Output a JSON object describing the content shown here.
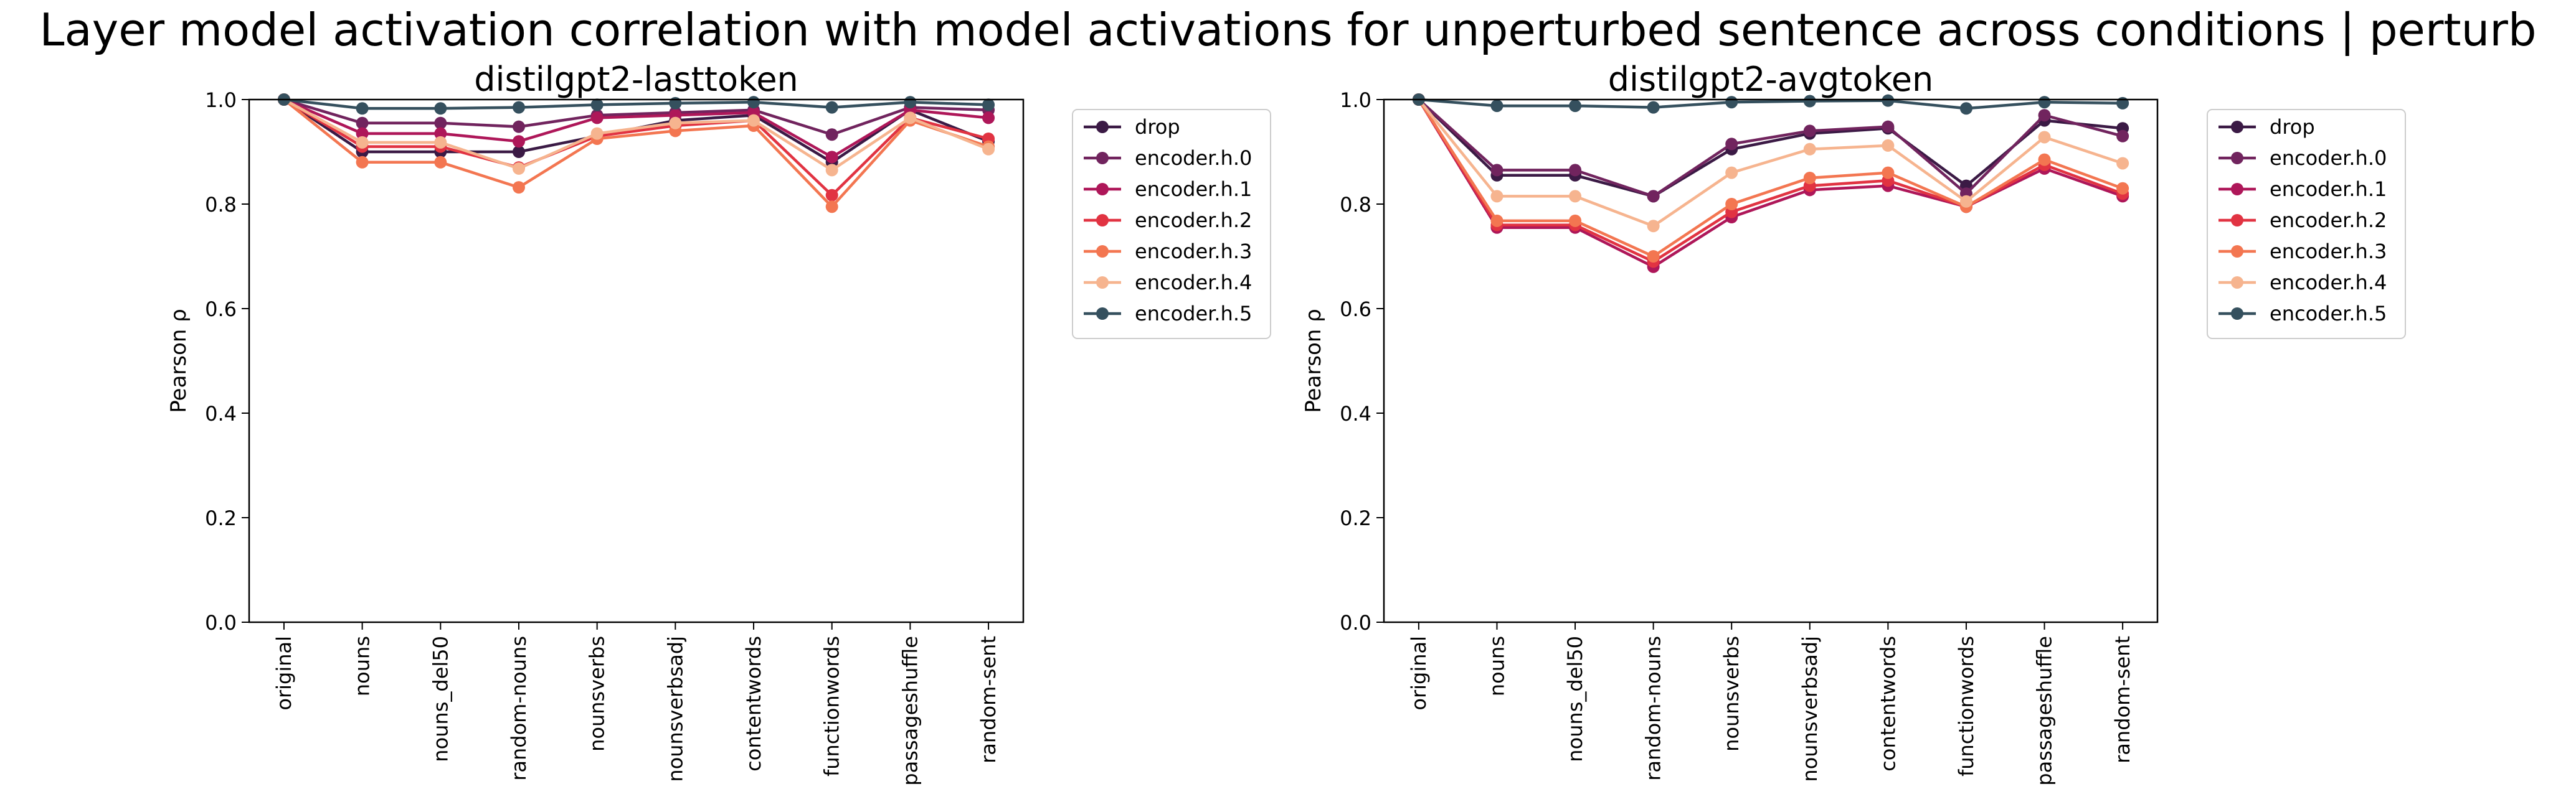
{
  "suptitle": "Layer model activation correlation with model activations for unperturbed sentence across conditions | perturb",
  "chart_data": [
    {
      "type": "line",
      "title": "distilgpt2-lasttoken",
      "xlabel": "",
      "ylabel": "Pearson ρ",
      "ylim": [
        0,
        1
      ],
      "yticks": [
        "0.0",
        "0.2",
        "0.4",
        "0.6",
        "0.8",
        "1.0"
      ],
      "legend": "outside-right",
      "grid": false,
      "categories": [
        "original",
        "nouns",
        "nouns_del50",
        "random-nouns",
        "nounsverbs",
        "nounsverbsadj",
        "contentwords",
        "functionwords",
        "passageshuffle",
        "random-sent"
      ],
      "series": [
        {
          "name": "drop",
          "color": "#3b1a45",
          "values": [
            1.0,
            0.9,
            0.9,
            0.9,
            0.93,
            0.96,
            0.97,
            0.88,
            0.98,
            0.92
          ]
        },
        {
          "name": "encoder.h.0",
          "color": "#71245e",
          "values": [
            1.0,
            0.955,
            0.955,
            0.948,
            0.97,
            0.975,
            0.98,
            0.933,
            0.985,
            0.98
          ]
        },
        {
          "name": "encoder.h.1",
          "color": "#ae1759",
          "values": [
            1.0,
            0.935,
            0.935,
            0.92,
            0.965,
            0.97,
            0.975,
            0.89,
            0.98,
            0.965
          ]
        },
        {
          "name": "encoder.h.2",
          "color": "#e13342",
          "values": [
            1.0,
            0.91,
            0.91,
            0.87,
            0.93,
            0.95,
            0.96,
            0.817,
            0.965,
            0.925
          ]
        },
        {
          "name": "encoder.h.3",
          "color": "#f37651",
          "values": [
            1.0,
            0.88,
            0.88,
            0.832,
            0.925,
            0.94,
            0.95,
            0.795,
            0.96,
            0.91
          ]
        },
        {
          "name": "encoder.h.4",
          "color": "#f6b48f",
          "values": [
            1.0,
            0.918,
            0.918,
            0.868,
            0.935,
            0.955,
            0.96,
            0.865,
            0.965,
            0.905
          ]
        },
        {
          "name": "encoder.h.5",
          "color": "#35505e",
          "values": [
            1.0,
            0.983,
            0.983,
            0.985,
            0.99,
            0.993,
            0.995,
            0.985,
            0.995,
            0.99
          ]
        }
      ]
    },
    {
      "type": "line",
      "title": "distilgpt2-avgtoken",
      "xlabel": "",
      "ylabel": "Pearson ρ",
      "ylim": [
        0,
        1
      ],
      "yticks": [
        "0.0",
        "0.2",
        "0.4",
        "0.6",
        "0.8",
        "1.0"
      ],
      "legend": "outside-right",
      "grid": false,
      "categories": [
        "original",
        "nouns",
        "nouns_del50",
        "random-nouns",
        "nounsverbs",
        "nounsverbsadj",
        "contentwords",
        "functionwords",
        "passageshuffle",
        "random-sent"
      ],
      "series": [
        {
          "name": "drop",
          "color": "#3b1a45",
          "values": [
            1.0,
            0.855,
            0.855,
            0.815,
            0.905,
            0.935,
            0.945,
            0.835,
            0.96,
            0.945
          ]
        },
        {
          "name": "encoder.h.0",
          "color": "#71245e",
          "values": [
            1.0,
            0.865,
            0.865,
            0.815,
            0.915,
            0.94,
            0.948,
            0.82,
            0.97,
            0.93
          ]
        },
        {
          "name": "encoder.h.1",
          "color": "#ae1759",
          "values": [
            1.0,
            0.755,
            0.755,
            0.68,
            0.775,
            0.827,
            0.835,
            0.795,
            0.868,
            0.815
          ]
        },
        {
          "name": "encoder.h.2",
          "color": "#e13342",
          "values": [
            1.0,
            0.76,
            0.76,
            0.69,
            0.785,
            0.835,
            0.845,
            0.795,
            0.875,
            0.82
          ]
        },
        {
          "name": "encoder.h.3",
          "color": "#f37651",
          "values": [
            1.0,
            0.768,
            0.768,
            0.7,
            0.8,
            0.85,
            0.86,
            0.795,
            0.885,
            0.83
          ]
        },
        {
          "name": "encoder.h.4",
          "color": "#f6b48f",
          "values": [
            1.0,
            0.815,
            0.815,
            0.758,
            0.86,
            0.905,
            0.912,
            0.805,
            0.928,
            0.878
          ]
        },
        {
          "name": "encoder.h.5",
          "color": "#35505e",
          "values": [
            1.0,
            0.988,
            0.988,
            0.985,
            0.995,
            0.997,
            0.998,
            0.983,
            0.995,
            0.993
          ]
        }
      ]
    }
  ]
}
